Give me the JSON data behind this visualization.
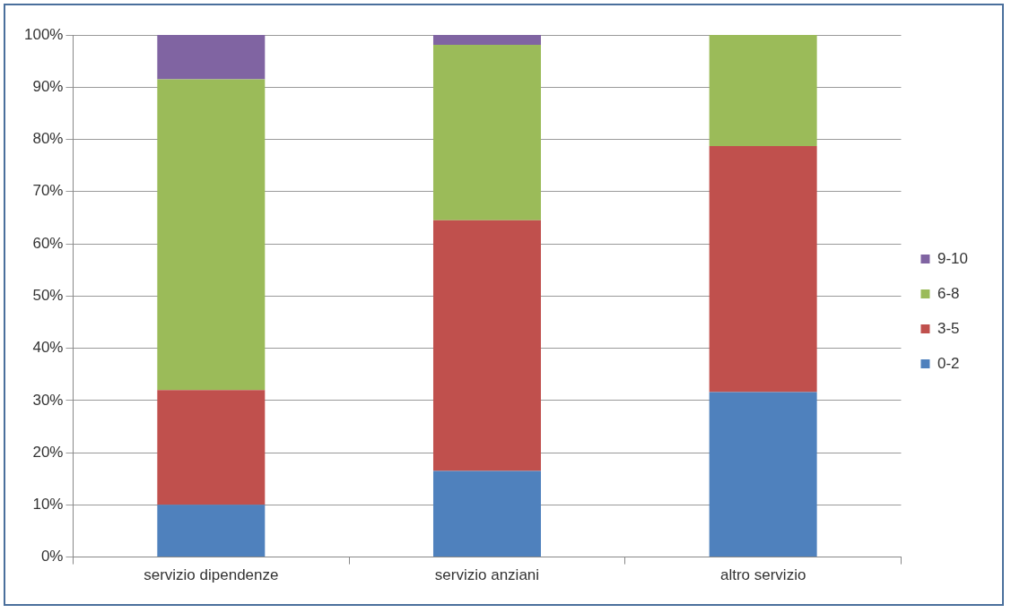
{
  "chart_data": {
    "type": "bar",
    "stacked": true,
    "categories": [
      "servizio dipendenze",
      "servizio anziani",
      "altro servizio"
    ],
    "series": [
      {
        "name": "0-2",
        "color": "#4f81bd",
        "values": [
          10,
          16.5,
          31.6
        ]
      },
      {
        "name": "3-5",
        "color": "#c0504d",
        "values": [
          22,
          48,
          47.1
        ]
      },
      {
        "name": "6-8",
        "color": "#9bbb59",
        "values": [
          59.5,
          33.6,
          21.3
        ]
      },
      {
        "name": "9-10",
        "color": "#8064a2",
        "values": [
          8.5,
          1.9,
          0
        ]
      }
    ],
    "ylim": [
      0,
      100
    ],
    "yticks": [
      {
        "value": 0,
        "label": "0%"
      },
      {
        "value": 10,
        "label": "10%"
      },
      {
        "value": 20,
        "label": "20%"
      },
      {
        "value": 30,
        "label": "30%"
      },
      {
        "value": 40,
        "label": "40%"
      },
      {
        "value": 50,
        "label": "50%"
      },
      {
        "value": 60,
        "label": "60%"
      },
      {
        "value": 70,
        "label": "70%"
      },
      {
        "value": 80,
        "label": "80%"
      },
      {
        "value": 90,
        "label": "90%"
      },
      {
        "value": 100,
        "label": "100%"
      }
    ],
    "grid": "y",
    "legend": "right"
  }
}
